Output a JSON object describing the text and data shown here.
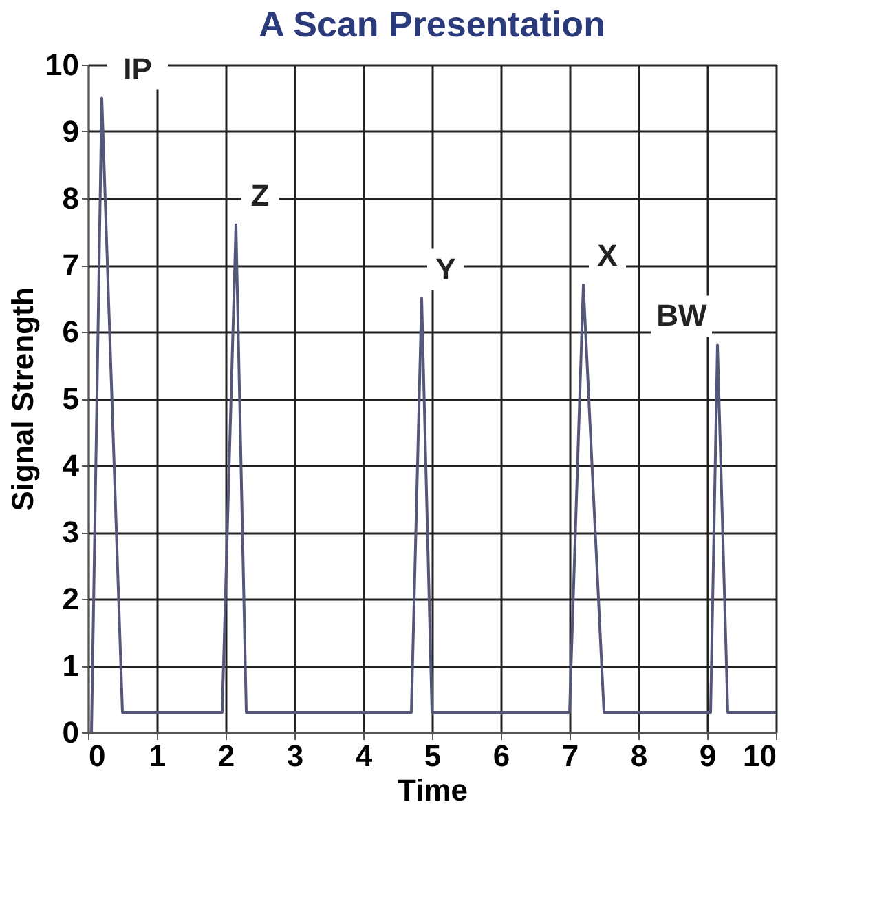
{
  "chart_data": {
    "type": "line",
    "title": "A Scan Presentation",
    "xlabel": "Time",
    "ylabel": "Signal Strength",
    "xlim": [
      0,
      10
    ],
    "ylim": [
      0,
      10
    ],
    "xticks": [
      0,
      1,
      2,
      3,
      4,
      5,
      6,
      7,
      8,
      9,
      10
    ],
    "yticks": [
      0,
      1,
      2,
      3,
      4,
      5,
      6,
      7,
      8,
      9,
      10
    ],
    "grid": true,
    "series": [
      {
        "color": "#55577a",
        "x": [
          0.05,
          0.2,
          0.5,
          1.95,
          2.15,
          2.3,
          4.7,
          4.85,
          5.0,
          7.0,
          7.2,
          7.5,
          9.05,
          9.15,
          9.3,
          10
        ],
        "values": [
          0,
          9.5,
          0.3,
          0.3,
          7.6,
          0.3,
          0.3,
          6.5,
          0.3,
          0.3,
          6.7,
          0.3,
          0.3,
          5.8,
          0.3,
          0.3
        ]
      }
    ],
    "annotations": [
      {
        "text": "IP",
        "x": 0.2,
        "y": 9.5
      },
      {
        "text": "Z",
        "x": 2.15,
        "y": 7.6
      },
      {
        "text": "Y",
        "x": 4.85,
        "y": 6.5
      },
      {
        "text": "X",
        "x": 7.2,
        "y": 6.7
      },
      {
        "text": "BW",
        "x": 9.15,
        "y": 5.8
      }
    ]
  }
}
